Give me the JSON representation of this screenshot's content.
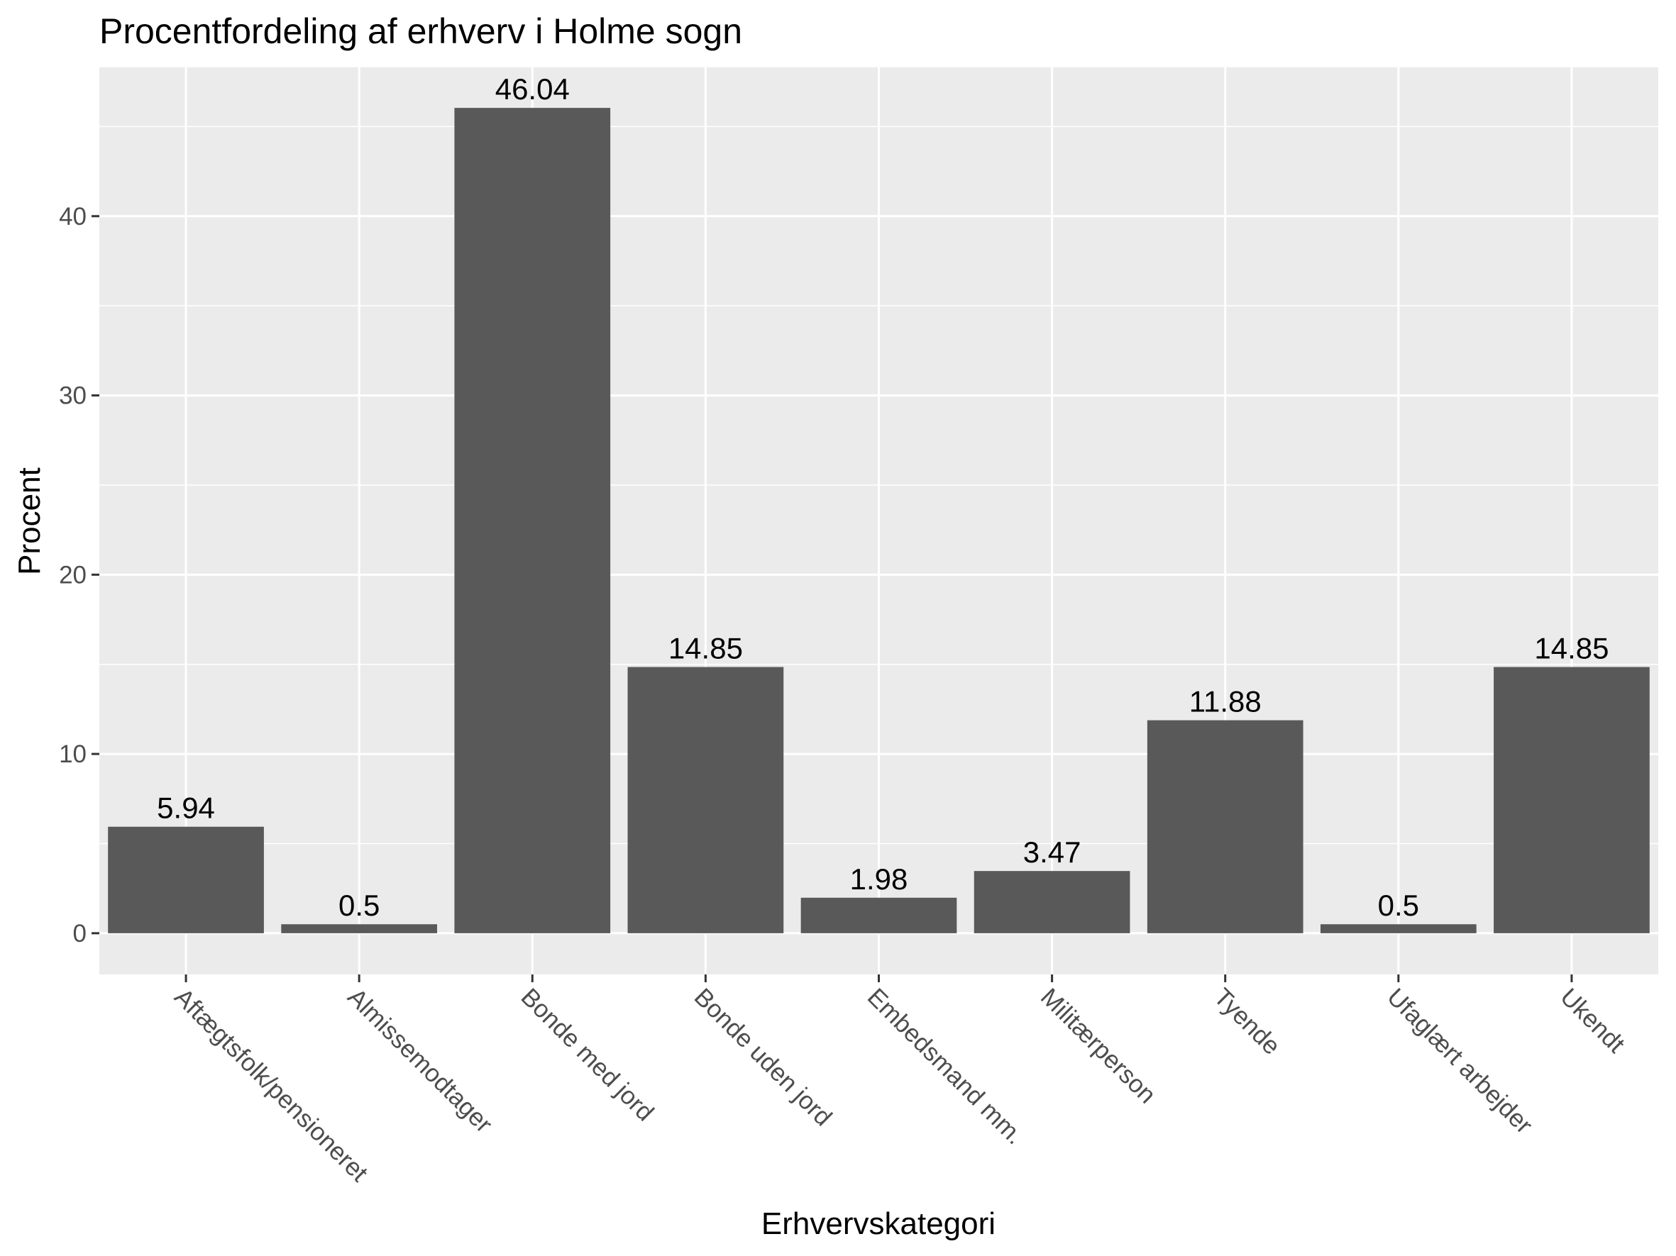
{
  "chart_data": {
    "type": "bar",
    "title": "Procentfordeling af erhverv i Holme sogn",
    "xlabel": "Erhvervskategori",
    "ylabel": "Procent",
    "categories": [
      "Aftægtsfolk/pensioneret",
      "Almissemodtager",
      "Bonde med jord",
      "Bonde uden jord",
      "Embedsmand mm.",
      "Militærperson",
      "Tyende",
      "Ufaglært arbejder",
      "Ukendt"
    ],
    "values": [
      5.94,
      0.5,
      46.04,
      14.85,
      1.98,
      3.47,
      11.88,
      0.5,
      14.85
    ],
    "data_labels": [
      "5.94",
      "0.5",
      "46.04",
      "14.85",
      "1.98",
      "3.47",
      "11.88",
      "0.5",
      "14.85"
    ],
    "yticks": [
      0,
      10,
      20,
      30,
      40
    ],
    "ylim": [
      -2.3,
      48.3
    ],
    "grid": true,
    "colors": {
      "bar": "#595959",
      "panel": "#ebebeb",
      "grid": "#ffffff",
      "tick_text": "#4d4d4d",
      "tick_mark": "#333333",
      "text": "#000000"
    }
  }
}
